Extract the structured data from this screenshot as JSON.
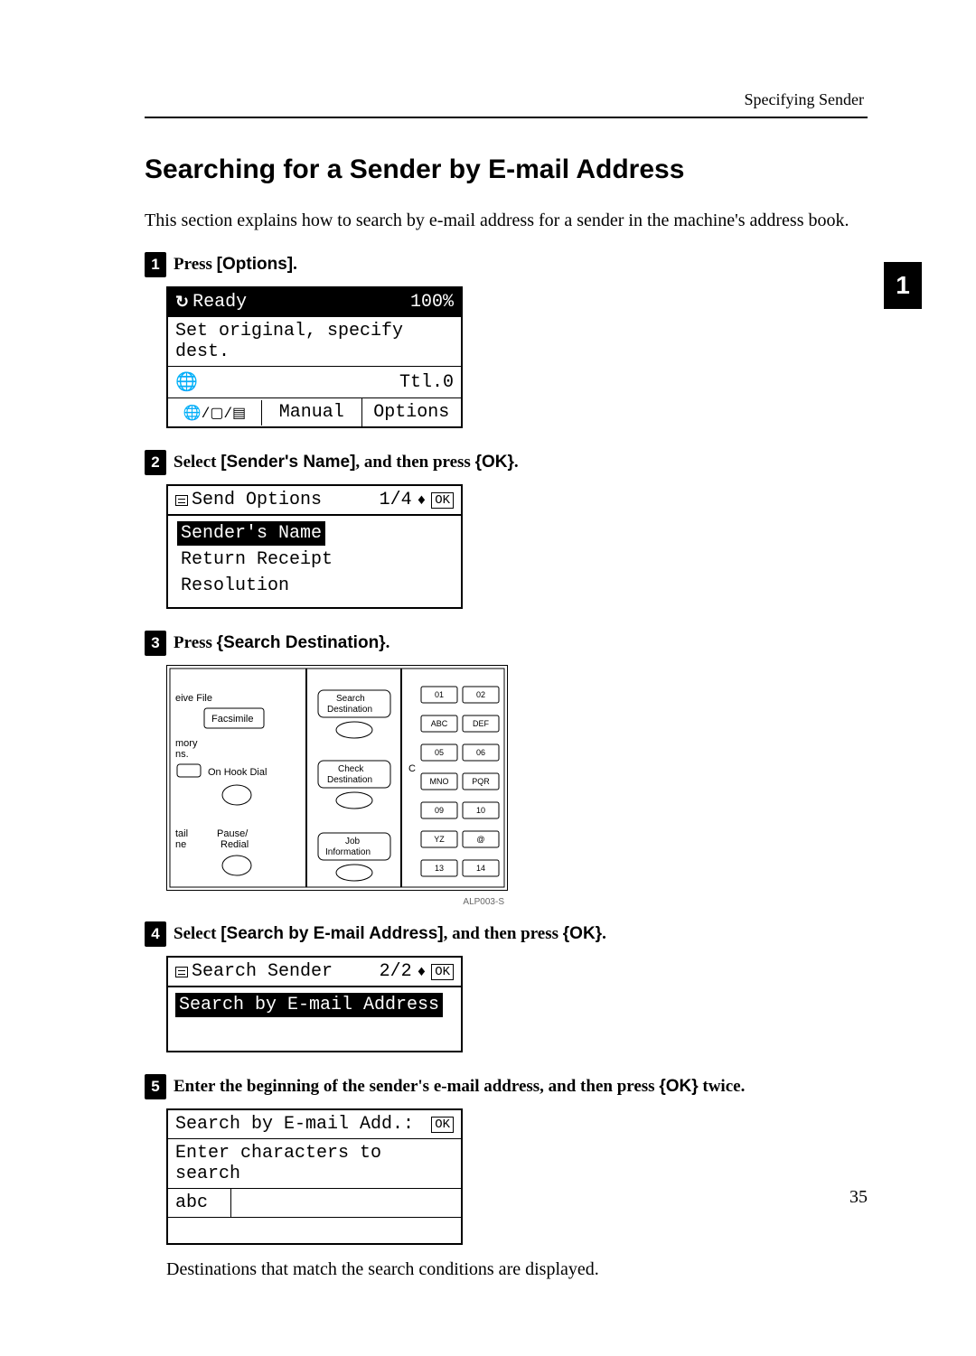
{
  "header": {
    "breadcrumb": "Specifying Sender"
  },
  "tab_marker": "1",
  "title": "Searching for a Sender by E-mail Address",
  "intro": "This section explains how to search by e-mail address for a sender in the machine's address book.",
  "steps": {
    "s1": {
      "num": "1",
      "text_pre": "Press ",
      "text_bold": "[Options]",
      "text_post": "."
    },
    "s2": {
      "num": "2",
      "text_pre": "Select ",
      "text_bold": "[Sender's Name]",
      "text_mid": ", and then press ",
      "text_key": "{OK}",
      "text_post": "."
    },
    "s3": {
      "num": "3",
      "text_pre": "Press ",
      "text_key": "{Search Destination}",
      "text_post": "."
    },
    "s4": {
      "num": "4",
      "text_pre": "Select ",
      "text_bold": "[Search by E-mail Address]",
      "text_mid": ", and then press ",
      "text_key": "{OK}",
      "text_post": "."
    },
    "s5": {
      "num": "5",
      "text_pre": "Enter the beginning of the sender's e-mail address, and then press ",
      "text_key": "{OK}",
      "text_post": " twice."
    }
  },
  "lcd1": {
    "ready": "Ready",
    "percent": "100%",
    "line2": "Set original, specify dest.",
    "ttl": "Ttl.0",
    "manual": "Manual",
    "options": "Options"
  },
  "lcd2": {
    "title": "Send Options",
    "page": "1/4",
    "ok": "OK",
    "opt1": "Sender's Name",
    "opt2": "Return Receipt",
    "opt3": "Resolution"
  },
  "panel": {
    "receive_file": "eive File",
    "facsimile": "Facsimile",
    "memory": "mory\nns.",
    "on_hook": "On Hook Dial",
    "tail": "tail\nne",
    "pause": "Pause/\nRedial",
    "search_dest": "Search\nDestination",
    "check_dest": "Check\nDestination",
    "job_info": "Job\nInformation",
    "keys": [
      "01",
      "02",
      "ABC",
      "DEF",
      "05",
      "06",
      "MNO",
      "PQR",
      "09",
      "10",
      "YZ",
      "@",
      "13",
      "14"
    ],
    "caption": "ALP003-S"
  },
  "lcd4": {
    "title": "Search Sender",
    "page": "2/2",
    "ok": "OK",
    "opt1": "Search by E-mail Address"
  },
  "lcd5": {
    "title": "Search by E-mail Add.:",
    "ok": "OK",
    "line2": "Enter characters to search",
    "input": "abc"
  },
  "result_text": "Destinations that match the search conditions are displayed.",
  "page_number": "35"
}
